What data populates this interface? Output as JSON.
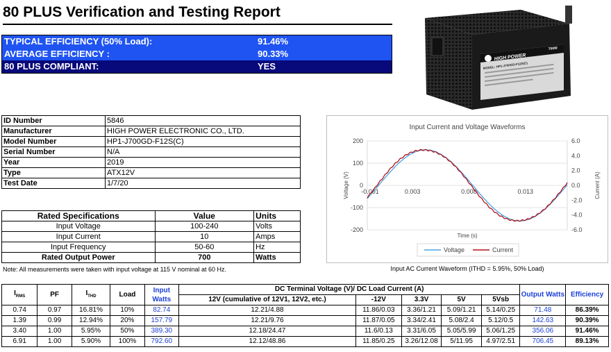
{
  "title": "80 PLUS Verification and Testing Report",
  "summary": [
    {
      "label": "TYPICAL EFFICIENCY (50% Load):",
      "value": "91.46%"
    },
    {
      "label": "AVERAGE EFFICIENCY :",
      "value": "90.33%"
    },
    {
      "label": "80 PLUS COMPLIANT:",
      "value": "YES"
    }
  ],
  "product_image": {
    "brand": "HIGH POWER",
    "badge": "700W",
    "label_text": "MODEL: HP1-J700GD-F12S(C)"
  },
  "info": [
    {
      "key": "ID Number",
      "value": "5846"
    },
    {
      "key": "Manufacturer",
      "value": "HIGH POWER ELECTRONIC CO., LTD."
    },
    {
      "key": "Model Number",
      "value": "HP1-J700GD-F12S(C)"
    },
    {
      "key": "Serial Number",
      "value": "N/A"
    },
    {
      "key": "Year",
      "value": "2019"
    },
    {
      "key": "Type",
      "value": "ATX12V"
    },
    {
      "key": "Test Date",
      "value": "1/7/20"
    }
  ],
  "specs": {
    "headers": [
      "Rated Specifications",
      "Value",
      "Units"
    ],
    "rows": [
      [
        "Input Voltage",
        "100-240",
        "Volts"
      ],
      [
        "Input Current",
        "10",
        "Amps"
      ],
      [
        "Input Frequency",
        "50-60",
        "Hz"
      ],
      [
        "Rated Output Power",
        "700",
        "Watts"
      ]
    ]
  },
  "note": "Note: All measurements were taken with input voltage at 115 V nominal at 60 Hz.",
  "chart_data": {
    "type": "line",
    "title": "Input Current and Voltage Waveforms",
    "xlabel": "Time (s)",
    "ylabel": "Voltage (V)",
    "y2label": "Current (A)",
    "xlim": [
      -0.001,
      0.0167
    ],
    "ylim": [
      -200,
      200
    ],
    "y2lim": [
      -6,
      6
    ],
    "x_ticks": [
      "-0.001",
      "0.003",
      "0.008",
      "0.013"
    ],
    "x_tick_values": [
      -0.001,
      0.003,
      0.008,
      0.013
    ],
    "y_ticks": [
      "200",
      "100",
      "0",
      "-100",
      "-200"
    ],
    "y2_ticks": [
      "6.0",
      "4.0",
      "2.0",
      "0.0",
      "-2.0",
      "-4.0",
      "-6.0"
    ],
    "legend": "bottom",
    "series": [
      {
        "name": "Voltage",
        "color": "#4aa3df",
        "amplitude": 160,
        "axis": "left"
      },
      {
        "name": "Current",
        "color": "#b0141c",
        "amplitude": 4.9,
        "axis": "right"
      }
    ],
    "caption": "Input AC Current Waveform (ITHD = 5.95%, 50% Load)"
  },
  "data_table": {
    "h_irms": "I",
    "h_irms_sub": "RMS",
    "h_pf": "PF",
    "h_ithd": "I",
    "h_ithd_sub": "THD",
    "h_load": "Load",
    "h_input": "Input Watts",
    "h_dc": "DC Terminal Voltage (V)/ DC Load Current (A)",
    "h_12v": "12V (cumulative of 12V1, 12V2, etc.)",
    "h_m12v": "-12V",
    "h_33v": "3.3V",
    "h_5v": "5V",
    "h_5vsb": "5Vsb",
    "h_output": "Output Watts",
    "h_eff": "Efficiency",
    "rows": [
      [
        "0.74",
        "0.97",
        "16.81%",
        "10%",
        "82.74",
        "12.21/4.88",
        "11.86/0.03",
        "3.36/1.21",
        "5.09/1.21",
        "5.14/0.25",
        "71.48",
        "86.39%"
      ],
      [
        "1.39",
        "0.99",
        "12.94%",
        "20%",
        "157.79",
        "12.21/9.76",
        "11.87/0.05",
        "3.34/2.41",
        "5.08/2.4",
        "5.12/0.5",
        "142.63",
        "90.39%"
      ],
      [
        "3.40",
        "1.00",
        "5.95%",
        "50%",
        "389.30",
        "12.18/24.47",
        "11.6/0.13",
        "3.31/6.05",
        "5.05/5.99",
        "5.06/1.25",
        "356.06",
        "91.46%"
      ],
      [
        "6.91",
        "1.00",
        "5.90%",
        "100%",
        "792.60",
        "12.12/48.86",
        "11.85/0.25",
        "3.26/12.08",
        "5/11.95",
        "4.97/2.51",
        "706.45",
        "89.13%"
      ]
    ]
  }
}
